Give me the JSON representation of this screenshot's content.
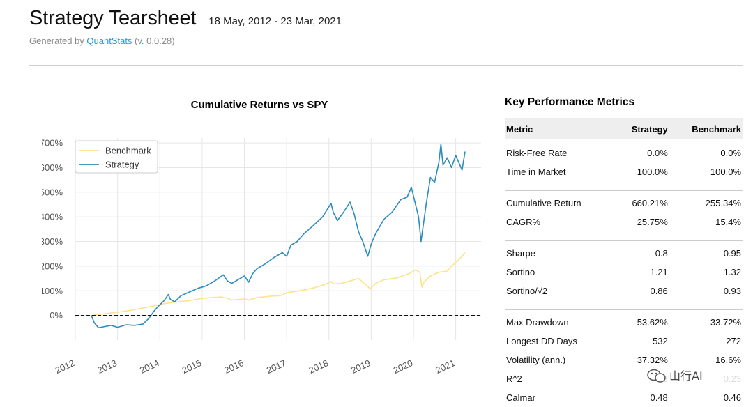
{
  "header": {
    "title": "Strategy Tearsheet",
    "date_range": "18 May, 2012 - 23 Mar, 2021",
    "generated_prefix": "Generated by ",
    "generated_link": "QuantStats",
    "generated_suffix": " (v. 0.0.28)"
  },
  "chart_data": {
    "type": "line",
    "title": "Cumulative Returns vs SPY",
    "xlabel": "",
    "ylabel": "",
    "x_range": [
      2012.0,
      2021.6
    ],
    "ylim": [
      -100,
      720
    ],
    "y_ticks": [
      0,
      100,
      200,
      300,
      400,
      500,
      600,
      700
    ],
    "y_tick_labels": [
      "0%",
      "100%",
      "200%",
      "300%",
      "400%",
      "500%",
      "600%",
      "700%"
    ],
    "x_ticks": [
      2012,
      2013,
      2014,
      2015,
      2016,
      2017,
      2018,
      2019,
      2020,
      2021
    ],
    "x_tick_labels": [
      "2012",
      "2013",
      "2014",
      "2015",
      "2016",
      "2017",
      "2018",
      "2019",
      "2020",
      "2021"
    ],
    "grid": true,
    "legend_position": "top-left",
    "zero_line": true,
    "series": [
      {
        "name": "Benchmark",
        "color": "#fde38a",
        "x": [
          2012.38,
          2012.6,
          2012.85,
          2013.0,
          2013.3,
          2013.6,
          2013.9,
          2014.1,
          2014.4,
          2014.7,
          2014.95,
          2015.2,
          2015.45,
          2015.6,
          2015.7,
          2016.0,
          2016.1,
          2016.3,
          2016.6,
          2016.85,
          2017.0,
          2017.3,
          2017.6,
          2017.9,
          2018.05,
          2018.1,
          2018.3,
          2018.7,
          2018.9,
          2018.98,
          2019.1,
          2019.3,
          2019.6,
          2019.9,
          2020.05,
          2020.15,
          2020.2,
          2020.25,
          2020.4,
          2020.6,
          2020.8,
          2020.9,
          2021.0,
          2021.15,
          2021.22
        ],
        "y": [
          0,
          5,
          10,
          13,
          20,
          30,
          40,
          48,
          55,
          60,
          68,
          72,
          75,
          70,
          62,
          67,
          62,
          72,
          78,
          80,
          92,
          100,
          110,
          125,
          138,
          128,
          130,
          150,
          120,
          108,
          130,
          145,
          152,
          170,
          185,
          175,
          115,
          135,
          160,
          175,
          180,
          200,
          215,
          240,
          255
        ]
      },
      {
        "name": "Strategy",
        "color": "#2b8cbe",
        "x": [
          2012.38,
          2012.45,
          2012.55,
          2012.7,
          2012.85,
          2013.0,
          2013.2,
          2013.4,
          2013.6,
          2013.75,
          2013.85,
          2013.95,
          2014.1,
          2014.2,
          2014.25,
          2014.35,
          2014.5,
          2014.7,
          2014.9,
          2015.1,
          2015.3,
          2015.5,
          2015.6,
          2015.7,
          2015.9,
          2016.0,
          2016.1,
          2016.2,
          2016.3,
          2016.5,
          2016.7,
          2016.9,
          2017.0,
          2017.1,
          2017.25,
          2017.4,
          2017.6,
          2017.85,
          2018.05,
          2018.1,
          2018.2,
          2018.35,
          2018.5,
          2018.6,
          2018.7,
          2018.8,
          2018.92,
          2019.0,
          2019.1,
          2019.3,
          2019.5,
          2019.7,
          2019.85,
          2019.95,
          2020.05,
          2020.12,
          2020.18,
          2020.22,
          2020.3,
          2020.4,
          2020.5,
          2020.6,
          2020.65,
          2020.7,
          2020.8,
          2020.9,
          2021.0,
          2021.1,
          2021.15,
          2021.22
        ],
        "y": [
          0,
          -30,
          -50,
          -45,
          -40,
          -48,
          -38,
          -40,
          -35,
          -10,
          15,
          35,
          60,
          85,
          65,
          55,
          80,
          95,
          110,
          120,
          140,
          165,
          140,
          130,
          150,
          160,
          135,
          170,
          190,
          210,
          235,
          255,
          240,
          285,
          300,
          330,
          360,
          400,
          455,
          420,
          385,
          420,
          460,
          410,
          340,
          300,
          240,
          290,
          330,
          390,
          420,
          470,
          480,
          520,
          450,
          400,
          300,
          350,
          450,
          560,
          540,
          620,
          695,
          610,
          640,
          600,
          650,
          610,
          590,
          665
        ]
      }
    ]
  },
  "metrics": {
    "title": "Key Performance Metrics",
    "headers": [
      "Metric",
      "Strategy",
      "Benchmark"
    ],
    "groups": [
      [
        [
          "Risk-Free Rate",
          "0.0%",
          "0.0%"
        ],
        [
          "Time in Market",
          "100.0%",
          "100.0%"
        ]
      ],
      [
        [
          "Cumulative Return",
          "660.21%",
          "255.34%"
        ],
        [
          "CAGR%",
          "25.75%",
          "15.4%"
        ]
      ],
      [
        [
          "Sharpe",
          "0.8",
          "0.95"
        ],
        [
          "Sortino",
          "1.21",
          "1.32"
        ],
        [
          "Sortino/√2",
          "0.86",
          "0.93"
        ]
      ],
      [
        [
          "Max Drawdown",
          "-53.62%",
          "-33.72%"
        ],
        [
          "Longest DD Days",
          "532",
          "272"
        ],
        [
          "Volatility (ann.)",
          "37.32%",
          "16.6%"
        ],
        [
          "R^2",
          "0.3",
          "0.23"
        ],
        [
          "Calmar",
          "0.48",
          "0.46"
        ]
      ]
    ]
  },
  "watermark": {
    "text": "山行AI"
  }
}
